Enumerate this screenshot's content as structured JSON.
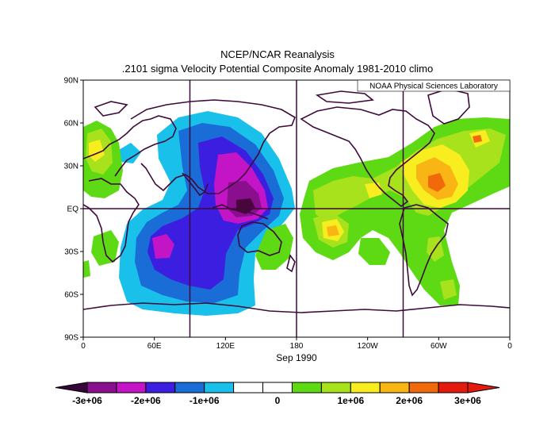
{
  "header": {
    "title": "NCEP/NCAR Reanalysis",
    "subtitle": ".2101 sigma Velocity Potential  Composite Anomaly 1981-2010 climo",
    "credit": "NOAA Physical Sciences Laboratory"
  },
  "map": {
    "lat_ticks": [
      "90N",
      "60N",
      "30N",
      "EQ",
      "30S",
      "60S",
      "90S"
    ],
    "lon_ticks": [
      "0",
      "60E",
      "120E",
      "180",
      "120W",
      "60W",
      "0"
    ],
    "date_label": "Sep 1990",
    "projection": "equirectangular",
    "lon_range": [
      0,
      360
    ],
    "lat_range": [
      -90,
      90
    ],
    "grid_lines": {
      "lon": [
        90,
        180,
        270
      ],
      "lat": [
        0
      ]
    }
  },
  "colorbar": {
    "labels": [
      "-3e+06",
      "-2e+06",
      "-1e+06",
      "0",
      "1e+06",
      "2e+06",
      "3e+06"
    ],
    "colors": [
      "#8a0f8f",
      "#c314c6",
      "#3b1ee0",
      "#1a6cd6",
      "#19c1ea",
      "#ffffff",
      "#ffffff",
      "#5dda14",
      "#a8e21c",
      "#f8ee1f",
      "#f8b514",
      "#f06a0c",
      "#e41a0f"
    ],
    "arrow_left_color": "#36063a",
    "arrow_right_color": "#e41a0f"
  },
  "anomaly_colors": {
    "neg3": "#8a0f8f",
    "neg2": "#c314c6",
    "neg1b": "#3b1ee0",
    "neg1": "#1a6cd6",
    "neg05": "#19c1ea",
    "pos05": "#5dda14",
    "pos1": "#a8e21c",
    "pos2": "#f8ee1f",
    "pos25": "#f8b514",
    "pos3": "#f06a0c",
    "darkest": "#48063c"
  }
}
